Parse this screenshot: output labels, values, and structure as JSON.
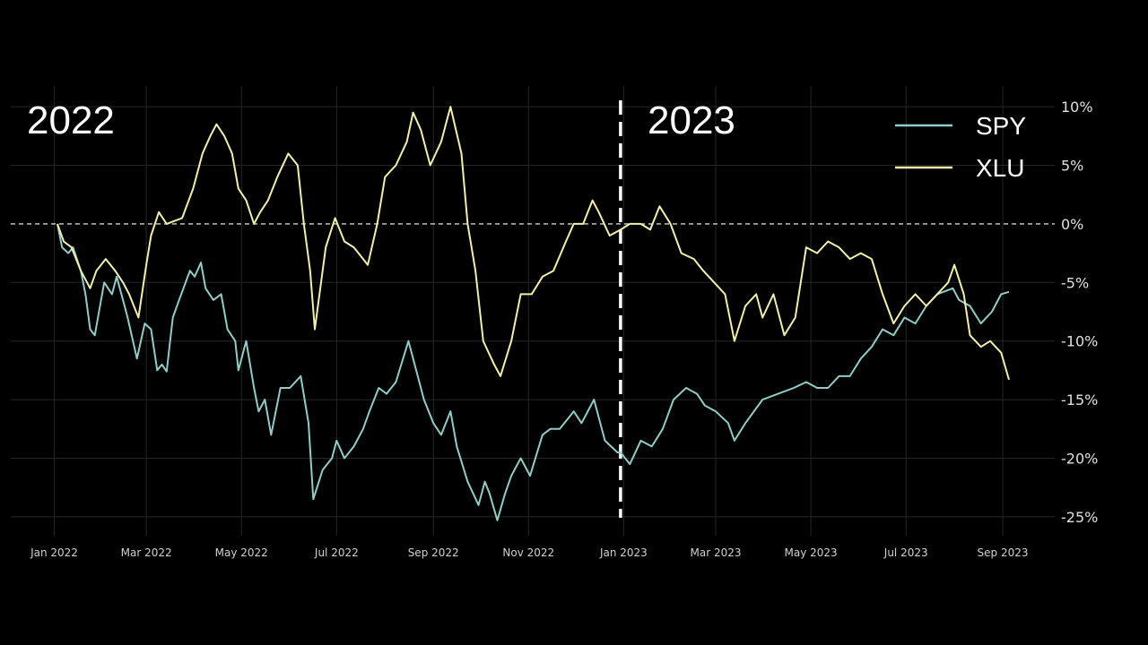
{
  "chart_data": {
    "type": "line",
    "x_axis": "date",
    "y_axis_unit": "%",
    "xlim": [
      "2022-01-03",
      "2023-09-05"
    ],
    "ylim": [
      -26,
      11
    ],
    "x_ticks": [
      {
        "date": "2022-01-01",
        "label": "Jan 2022"
      },
      {
        "date": "2022-03-01",
        "label": "Mar 2022"
      },
      {
        "date": "2022-05-01",
        "label": "May 2022"
      },
      {
        "date": "2022-07-01",
        "label": "Jul 2022"
      },
      {
        "date": "2022-09-01",
        "label": "Sep 2022"
      },
      {
        "date": "2022-11-01",
        "label": "Nov 2022"
      },
      {
        "date": "2023-01-01",
        "label": "Jan 2023"
      },
      {
        "date": "2023-03-01",
        "label": "Mar 2023"
      },
      {
        "date": "2023-05-01",
        "label": "May 2023"
      },
      {
        "date": "2023-07-01",
        "label": "Jul 2023"
      },
      {
        "date": "2023-09-01",
        "label": "Sep 2023"
      }
    ],
    "y_ticks": [
      {
        "value": 10,
        "label": "10%"
      },
      {
        "value": 5,
        "label": "5%"
      },
      {
        "value": 0,
        "label": "0%"
      },
      {
        "value": -5,
        "label": "-5%"
      },
      {
        "value": -10,
        "label": "-10%"
      },
      {
        "value": -15,
        "label": "-15%"
      },
      {
        "value": -20,
        "label": "-20%"
      },
      {
        "value": -25,
        "label": "-25%"
      }
    ],
    "reference_line": {
      "y": 0,
      "style": "dashed"
    },
    "divider": {
      "date": "2022-12-30",
      "style": "dashed"
    },
    "period_labels": [
      "2022",
      "2023"
    ],
    "grid": true,
    "legend_position": "top-right",
    "series": [
      {
        "name": "SPY",
        "color": "#8ecdc8",
        "points": [
          [
            "2022-01-03",
            0
          ],
          [
            "2022-01-06",
            -2
          ],
          [
            "2022-01-10",
            -2.5
          ],
          [
            "2022-01-13",
            -2
          ],
          [
            "2022-01-18",
            -4
          ],
          [
            "2022-01-21",
            -6
          ],
          [
            "2022-01-24",
            -9
          ],
          [
            "2022-01-27",
            -9.5
          ],
          [
            "2022-02-02",
            -5
          ],
          [
            "2022-02-07",
            -6
          ],
          [
            "2022-02-10",
            -4.5
          ],
          [
            "2022-02-14",
            -6.5
          ],
          [
            "2022-02-17",
            -8
          ],
          [
            "2022-02-23",
            -11.5
          ],
          [
            "2022-02-28",
            -8.5
          ],
          [
            "2022-03-04",
            -9
          ],
          [
            "2022-03-08",
            -12.5
          ],
          [
            "2022-03-11",
            -12
          ],
          [
            "2022-03-14",
            -12.6
          ],
          [
            "2022-03-18",
            -8
          ],
          [
            "2022-03-22",
            -6.5
          ],
          [
            "2022-03-29",
            -4
          ],
          [
            "2022-04-01",
            -4.5
          ],
          [
            "2022-04-05",
            -3.3
          ],
          [
            "2022-04-08",
            -5.5
          ],
          [
            "2022-04-13",
            -6.5
          ],
          [
            "2022-04-18",
            -6
          ],
          [
            "2022-04-22",
            -9
          ],
          [
            "2022-04-27",
            -10
          ],
          [
            "2022-04-29",
            -12.5
          ],
          [
            "2022-05-04",
            -10
          ],
          [
            "2022-05-09",
            -14
          ],
          [
            "2022-05-12",
            -16
          ],
          [
            "2022-05-16",
            -15
          ],
          [
            "2022-05-20",
            -18
          ],
          [
            "2022-05-26",
            -14
          ],
          [
            "2022-06-01",
            -14
          ],
          [
            "2022-06-08",
            -13
          ],
          [
            "2022-06-13",
            -17
          ],
          [
            "2022-06-16",
            -23.5
          ],
          [
            "2022-06-22",
            -21
          ],
          [
            "2022-06-28",
            -20
          ],
          [
            "2022-07-01",
            -18.5
          ],
          [
            "2022-07-06",
            -20
          ],
          [
            "2022-07-12",
            -19
          ],
          [
            "2022-07-18",
            -17.5
          ],
          [
            "2022-07-22",
            -16
          ],
          [
            "2022-07-28",
            -14
          ],
          [
            "2022-08-02",
            -14.5
          ],
          [
            "2022-08-08",
            -13.5
          ],
          [
            "2022-08-16",
            -10
          ],
          [
            "2022-08-19",
            -11.5
          ],
          [
            "2022-08-26",
            -15
          ],
          [
            "2022-09-01",
            -17
          ],
          [
            "2022-09-06",
            -18
          ],
          [
            "2022-09-12",
            -16
          ],
          [
            "2022-09-16",
            -19
          ],
          [
            "2022-09-23",
            -22
          ],
          [
            "2022-09-30",
            -24
          ],
          [
            "2022-10-04",
            -22
          ],
          [
            "2022-10-07",
            -23
          ],
          [
            "2022-10-12",
            -25.3
          ],
          [
            "2022-10-17",
            -23
          ],
          [
            "2022-10-21",
            -21.5
          ],
          [
            "2022-10-27",
            -20
          ],
          [
            "2022-11-02",
            -21.5
          ],
          [
            "2022-11-10",
            -18
          ],
          [
            "2022-11-15",
            -17.5
          ],
          [
            "2022-11-21",
            -17.5
          ],
          [
            "2022-11-30",
            -16
          ],
          [
            "2022-12-05",
            -17
          ],
          [
            "2022-12-13",
            -15
          ],
          [
            "2022-12-20",
            -18.5
          ],
          [
            "2022-12-28",
            -19.5
          ],
          [
            "2022-12-30",
            -19.5
          ],
          [
            "2023-01-05",
            -20.5
          ],
          [
            "2023-01-12",
            -18.5
          ],
          [
            "2023-01-19",
            -19
          ],
          [
            "2023-01-26",
            -17.5
          ],
          [
            "2023-02-02",
            -15
          ],
          [
            "2023-02-10",
            -14
          ],
          [
            "2023-02-17",
            -14.5
          ],
          [
            "2023-02-22",
            -15.5
          ],
          [
            "2023-03-01",
            -16
          ],
          [
            "2023-03-09",
            -17
          ],
          [
            "2023-03-13",
            -18.5
          ],
          [
            "2023-03-20",
            -17
          ],
          [
            "2023-03-31",
            -15
          ],
          [
            "2023-04-10",
            -14.5
          ],
          [
            "2023-04-20",
            -14
          ],
          [
            "2023-04-28",
            -13.5
          ],
          [
            "2023-05-05",
            -14
          ],
          [
            "2023-05-12",
            -14
          ],
          [
            "2023-05-19",
            -13
          ],
          [
            "2023-05-26",
            -13
          ],
          [
            "2023-06-02",
            -11.5
          ],
          [
            "2023-06-09",
            -10.5
          ],
          [
            "2023-06-16",
            -9
          ],
          [
            "2023-06-23",
            -9.5
          ],
          [
            "2023-06-30",
            -8
          ],
          [
            "2023-07-07",
            -8.5
          ],
          [
            "2023-07-14",
            -7
          ],
          [
            "2023-07-21",
            -6
          ],
          [
            "2023-07-31",
            -5.5
          ],
          [
            "2023-08-04",
            -6.5
          ],
          [
            "2023-08-11",
            -7
          ],
          [
            "2023-08-18",
            -8.5
          ],
          [
            "2023-08-25",
            -7.5
          ],
          [
            "2023-08-31",
            -6
          ],
          [
            "2023-09-05",
            -5.8
          ]
        ]
      },
      {
        "name": "XLU",
        "color": "#f2f0a6",
        "points": [
          [
            "2022-01-03",
            0
          ],
          [
            "2022-01-07",
            -1.5
          ],
          [
            "2022-01-12",
            -2
          ],
          [
            "2022-01-18",
            -4
          ],
          [
            "2022-01-24",
            -5.5
          ],
          [
            "2022-01-28",
            -4
          ],
          [
            "2022-02-03",
            -3
          ],
          [
            "2022-02-09",
            -4
          ],
          [
            "2022-02-14",
            -5
          ],
          [
            "2022-02-18",
            -6
          ],
          [
            "2022-02-24",
            -8
          ],
          [
            "2022-03-01",
            -3.5
          ],
          [
            "2022-03-04",
            -1
          ],
          [
            "2022-03-09",
            1
          ],
          [
            "2022-03-14",
            0
          ],
          [
            "2022-03-18",
            0.2
          ],
          [
            "2022-03-24",
            0.5
          ],
          [
            "2022-03-31",
            3
          ],
          [
            "2022-04-06",
            6
          ],
          [
            "2022-04-11",
            7.5
          ],
          [
            "2022-04-15",
            8.5
          ],
          [
            "2022-04-20",
            7.5
          ],
          [
            "2022-04-25",
            6
          ],
          [
            "2022-04-29",
            3
          ],
          [
            "2022-05-04",
            2
          ],
          [
            "2022-05-09",
            0
          ],
          [
            "2022-05-13",
            1
          ],
          [
            "2022-05-18",
            2
          ],
          [
            "2022-05-24",
            4
          ],
          [
            "2022-05-31",
            6
          ],
          [
            "2022-06-06",
            5
          ],
          [
            "2022-06-10",
            0
          ],
          [
            "2022-06-14",
            -4
          ],
          [
            "2022-06-17",
            -9
          ],
          [
            "2022-06-24",
            -2
          ],
          [
            "2022-06-30",
            0.5
          ],
          [
            "2022-07-06",
            -1.5
          ],
          [
            "2022-07-12",
            -2
          ],
          [
            "2022-07-18",
            -3
          ],
          [
            "2022-07-21",
            -3.5
          ],
          [
            "2022-07-27",
            0
          ],
          [
            "2022-08-01",
            4
          ],
          [
            "2022-08-08",
            5
          ],
          [
            "2022-08-15",
            7
          ],
          [
            "2022-08-19",
            9.5
          ],
          [
            "2022-08-24",
            8
          ],
          [
            "2022-08-30",
            5
          ],
          [
            "2022-09-06",
            7
          ],
          [
            "2022-09-12",
            10
          ],
          [
            "2022-09-19",
            6
          ],
          [
            "2022-09-23",
            0
          ],
          [
            "2022-09-28",
            -4
          ],
          [
            "2022-10-03",
            -10
          ],
          [
            "2022-10-10",
            -12
          ],
          [
            "2022-10-14",
            -13
          ],
          [
            "2022-10-21",
            -10
          ],
          [
            "2022-10-27",
            -6
          ],
          [
            "2022-11-03",
            -6
          ],
          [
            "2022-11-10",
            -4.5
          ],
          [
            "2022-11-17",
            -4
          ],
          [
            "2022-11-25",
            -1.5
          ],
          [
            "2022-11-30",
            0
          ],
          [
            "2022-12-06",
            0
          ],
          [
            "2022-12-12",
            2
          ],
          [
            "2022-12-16",
            1
          ],
          [
            "2022-12-23",
            -1
          ],
          [
            "2022-12-30",
            -0.5
          ],
          [
            "2023-01-05",
            0
          ],
          [
            "2023-01-12",
            0
          ],
          [
            "2023-01-18",
            -0.5
          ],
          [
            "2023-01-24",
            1.5
          ],
          [
            "2023-01-31",
            0
          ],
          [
            "2023-02-07",
            -2.5
          ],
          [
            "2023-02-15",
            -3
          ],
          [
            "2023-02-21",
            -4
          ],
          [
            "2023-02-28",
            -5
          ],
          [
            "2023-03-07",
            -6
          ],
          [
            "2023-03-13",
            -10
          ],
          [
            "2023-03-20",
            -7
          ],
          [
            "2023-03-27",
            -6
          ],
          [
            "2023-03-31",
            -8
          ],
          [
            "2023-04-07",
            -6
          ],
          [
            "2023-04-14",
            -9.5
          ],
          [
            "2023-04-21",
            -8
          ],
          [
            "2023-04-28",
            -2
          ],
          [
            "2023-05-05",
            -2.5
          ],
          [
            "2023-05-12",
            -1.5
          ],
          [
            "2023-05-19",
            -2
          ],
          [
            "2023-05-26",
            -3
          ],
          [
            "2023-06-02",
            -2.5
          ],
          [
            "2023-06-09",
            -3
          ],
          [
            "2023-06-16",
            -6
          ],
          [
            "2023-06-23",
            -8.5
          ],
          [
            "2023-06-30",
            -7
          ],
          [
            "2023-07-07",
            -6
          ],
          [
            "2023-07-14",
            -7
          ],
          [
            "2023-07-21",
            -6
          ],
          [
            "2023-07-28",
            -5
          ],
          [
            "2023-08-01",
            -3.5
          ],
          [
            "2023-08-07",
            -6
          ],
          [
            "2023-08-11",
            -9.5
          ],
          [
            "2023-08-18",
            -10.5
          ],
          [
            "2023-08-24",
            -10
          ],
          [
            "2023-08-31",
            -11
          ],
          [
            "2023-09-05",
            -13.3
          ]
        ]
      }
    ]
  }
}
